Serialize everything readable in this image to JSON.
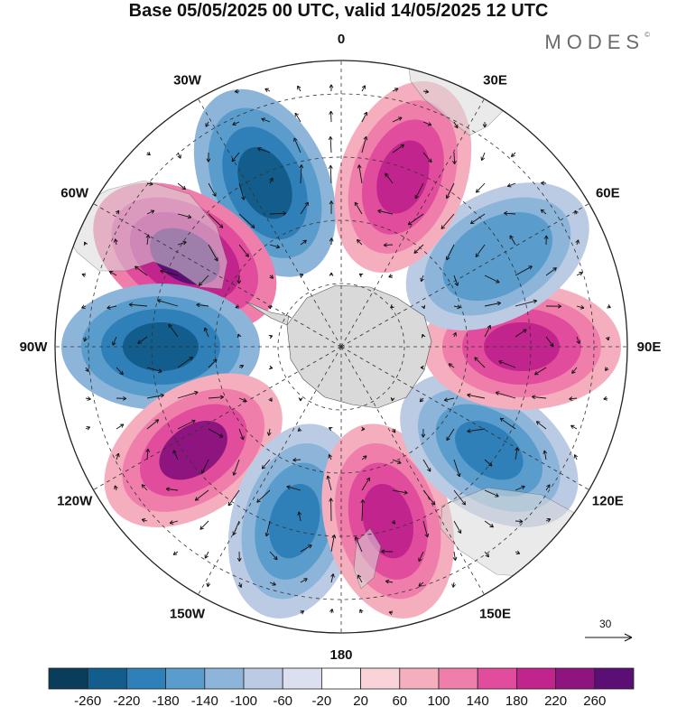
{
  "title": "Base 05/05/2025 00 UTC, valid 14/05/2025 12 UTC",
  "brand": "MODES",
  "brand_mark": "©",
  "map": {
    "projection": "south-polar-stereographic",
    "longitude_labels": [
      "0",
      "30E",
      "60E",
      "90E",
      "120E",
      "150E",
      "180",
      "150W",
      "120W",
      "90W",
      "60W",
      "30W"
    ],
    "vector_reference": "30",
    "anomaly_centers": [
      {
        "lon": -25,
        "value": -260
      },
      {
        "lon": -60,
        "value": 260
      },
      {
        "lon": -90,
        "value": -260
      },
      {
        "lon": -125,
        "value": 220
      },
      {
        "lon": -165,
        "value": -220
      },
      {
        "lon": 165,
        "value": 180
      },
      {
        "lon": 125,
        "value": -220
      },
      {
        "lon": 90,
        "value": 180
      },
      {
        "lon": 60,
        "value": -180
      },
      {
        "lon": 20,
        "value": 180
      }
    ]
  },
  "colorbar": {
    "ticks": [
      "-260",
      "-220",
      "-180",
      "-140",
      "-100",
      "-60",
      "-20",
      "20",
      "60",
      "100",
      "140",
      "180",
      "220",
      "260"
    ],
    "colors": [
      "#0a3d5c",
      "#135d8c",
      "#2f7fb8",
      "#5a9ccb",
      "#8db5da",
      "#bccbe4",
      "#dcdff0",
      "#ffffff",
      "#f9d3d8",
      "#f5aebd",
      "#ef7faa",
      "#e14c9d",
      "#c2248d",
      "#8e157f",
      "#5b0f75"
    ]
  }
}
